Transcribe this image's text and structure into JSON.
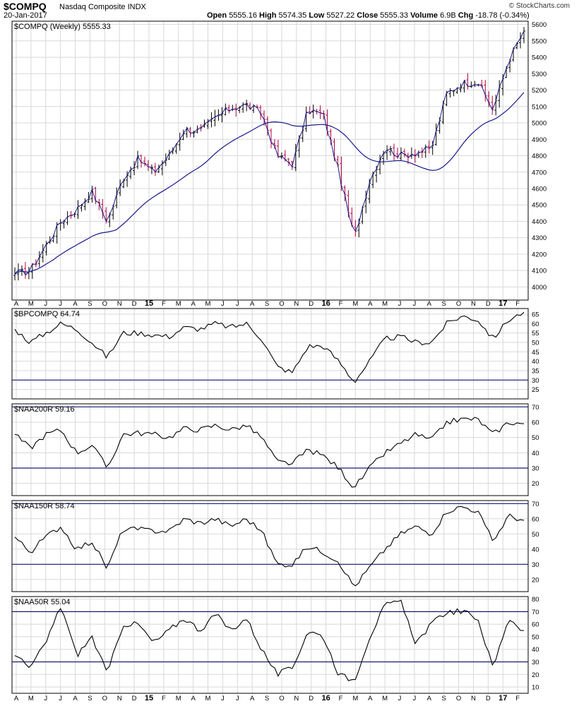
{
  "header": {
    "symbol": "$COMPQ",
    "name": "Nasdaq Composite INDX",
    "date": "20-Jan-2017",
    "open_label": "Open",
    "open": "5555.16",
    "high_label": "High",
    "high": "5574.35",
    "low_label": "Low",
    "low": "5527.22",
    "close_label": "Close",
    "close": "5555.33",
    "volume_label": "Volume",
    "volume": "6.9B",
    "chg_label": "Chg",
    "chg": "-18.78 (-0.34%)",
    "brand": "© StockCharts.com"
  },
  "colors": {
    "up_bar": "#000000",
    "down_bar": "#b0003a",
    "line": "#000000",
    "moving_average": "#1a1a8c",
    "reference_line": "#1a1a6e",
    "grid": "#d8d8d8",
    "border": "#000000"
  },
  "x_axis": {
    "labels": [
      "A",
      "M",
      "J",
      "J",
      "A",
      "S",
      "O",
      "N",
      "D",
      "15",
      "F",
      "M",
      "A",
      "M",
      "J",
      "J",
      "A",
      "S",
      "O",
      "N",
      "D",
      "16",
      "F",
      "M",
      "A",
      "M",
      "J",
      "J",
      "A",
      "S",
      "O",
      "N",
      "D",
      "17",
      "F"
    ]
  },
  "chart_data": [
    {
      "type": "ohlc",
      "panel_label": "$COMPQ (Weekly) 5555.33",
      "frequency": "weekly",
      "overlay": "moving average",
      "ylim": [
        3920,
        5620
      ],
      "y_ticks": [
        4000,
        4100,
        4200,
        4300,
        4400,
        4500,
        4600,
        4700,
        4800,
        4900,
        5000,
        5100,
        5200,
        5300,
        5400,
        5500,
        5600
      ],
      "close_anchors": [
        [
          "A",
          4080
        ],
        [
          "M",
          4100
        ],
        [
          "J",
          4250
        ],
        [
          "J",
          4400
        ],
        [
          "A",
          4470
        ],
        [
          "S",
          4580
        ],
        [
          "O",
          4400
        ],
        [
          "N",
          4660
        ],
        [
          "D",
          4780
        ],
        [
          "15",
          4700
        ],
        [
          "F",
          4800
        ],
        [
          "M",
          4960
        ],
        [
          "A",
          4950
        ],
        [
          "M",
          5030
        ],
        [
          "J",
          5090
        ],
        [
          "J",
          5110
        ],
        [
          "A",
          5060
        ],
        [
          "S",
          4800
        ],
        [
          "O",
          4750
        ],
        [
          "N",
          5080
        ],
        [
          "D",
          5050
        ],
        [
          "16",
          4700
        ],
        [
          "F",
          4300
        ],
        [
          "M",
          4650
        ],
        [
          "A",
          4850
        ],
        [
          "M",
          4800
        ],
        [
          "J",
          4820
        ],
        [
          "J",
          4840
        ],
        [
          "A",
          5180
        ],
        [
          "S",
          5240
        ],
        [
          "O",
          5250
        ],
        [
          "N",
          5080
        ],
        [
          "D",
          5380
        ],
        [
          "17",
          5560
        ]
      ],
      "last_close": 5555.33
    },
    {
      "type": "line",
      "panel_label": "$BPCOMPQ 64.74",
      "ylim": [
        20,
        68
      ],
      "y_ticks": [
        25,
        30,
        35,
        40,
        45,
        50,
        55,
        60,
        65
      ],
      "reference_lines": [
        30
      ],
      "anchors": [
        [
          "A",
          57
        ],
        [
          "M",
          50
        ],
        [
          "J",
          55
        ],
        [
          "J",
          60
        ],
        [
          "A",
          57
        ],
        [
          "S",
          50
        ],
        [
          "O",
          42
        ],
        [
          "N",
          55
        ],
        [
          "D",
          55
        ],
        [
          "15",
          54
        ],
        [
          "F",
          53
        ],
        [
          "M",
          58
        ],
        [
          "A",
          57
        ],
        [
          "M",
          60
        ],
        [
          "J",
          58
        ],
        [
          "J",
          60
        ],
        [
          "A",
          52
        ],
        [
          "S",
          37
        ],
        [
          "O",
          34
        ],
        [
          "N",
          48
        ],
        [
          "D",
          48
        ],
        [
          "16",
          40
        ],
        [
          "F",
          29
        ],
        [
          "M",
          40
        ],
        [
          "A",
          52
        ],
        [
          "M",
          53
        ],
        [
          "J",
          50
        ],
        [
          "J",
          50
        ],
        [
          "A",
          60
        ],
        [
          "S",
          64
        ],
        [
          "O",
          62
        ],
        [
          "N",
          52
        ],
        [
          "D",
          62
        ],
        [
          "17",
          66
        ]
      ],
      "last_value": 64.74
    },
    {
      "type": "line",
      "panel_label": "$NAA200R 59.16",
      "ylim": [
        12,
        72
      ],
      "y_ticks": [
        20,
        30,
        40,
        50,
        60,
        70
      ],
      "reference_lines": [
        30,
        70
      ],
      "anchors": [
        [
          "A",
          52
        ],
        [
          "M",
          43
        ],
        [
          "J",
          52
        ],
        [
          "J",
          55
        ],
        [
          "A",
          40
        ],
        [
          "S",
          45
        ],
        [
          "O",
          30
        ],
        [
          "N",
          52
        ],
        [
          "D",
          53
        ],
        [
          "15",
          52
        ],
        [
          "F",
          50
        ],
        [
          "M",
          56
        ],
        [
          "A",
          55
        ],
        [
          "M",
          58
        ],
        [
          "J",
          55
        ],
        [
          "J",
          58
        ],
        [
          "A",
          50
        ],
        [
          "S",
          34
        ],
        [
          "O",
          33
        ],
        [
          "N",
          42
        ],
        [
          "D",
          38
        ],
        [
          "16",
          30
        ],
        [
          "F",
          17
        ],
        [
          "M",
          30
        ],
        [
          "A",
          40
        ],
        [
          "M",
          46
        ],
        [
          "J",
          52
        ],
        [
          "J",
          48
        ],
        [
          "A",
          60
        ],
        [
          "S",
          62
        ],
        [
          "O",
          62
        ],
        [
          "N",
          52
        ],
        [
          "D",
          60
        ],
        [
          "17",
          59
        ]
      ],
      "last_value": 59.16
    },
    {
      "type": "line",
      "panel_label": "$NAA150R 58.74",
      "ylim": [
        12,
        72
      ],
      "y_ticks": [
        20,
        30,
        40,
        50,
        60,
        70
      ],
      "reference_lines": [
        30,
        70
      ],
      "anchors": [
        [
          "A",
          48
        ],
        [
          "M",
          38
        ],
        [
          "J",
          48
        ],
        [
          "J",
          55
        ],
        [
          "A",
          40
        ],
        [
          "S",
          45
        ],
        [
          "O",
          27
        ],
        [
          "N",
          53
        ],
        [
          "D",
          53
        ],
        [
          "15",
          52
        ],
        [
          "F",
          52
        ],
        [
          "M",
          60
        ],
        [
          "A",
          57
        ],
        [
          "M",
          60
        ],
        [
          "J",
          55
        ],
        [
          "J",
          60
        ],
        [
          "A",
          52
        ],
        [
          "S",
          30
        ],
        [
          "O",
          30
        ],
        [
          "N",
          42
        ],
        [
          "D",
          38
        ],
        [
          "16",
          32
        ],
        [
          "F",
          15
        ],
        [
          "M",
          28
        ],
        [
          "A",
          40
        ],
        [
          "M",
          50
        ],
        [
          "J",
          55
        ],
        [
          "J",
          50
        ],
        [
          "A",
          65
        ],
        [
          "S",
          68
        ],
        [
          "O",
          65
        ],
        [
          "N",
          45
        ],
        [
          "D",
          62
        ],
        [
          "17",
          59
        ]
      ],
      "last_value": 58.74
    },
    {
      "type": "line",
      "panel_label": "$NAA50R 55.04",
      "ylim": [
        5,
        82
      ],
      "y_ticks": [
        10,
        20,
        30,
        40,
        50,
        60,
        70,
        80
      ],
      "reference_lines": [
        30,
        70
      ],
      "anchors": [
        [
          "A",
          35
        ],
        [
          "M",
          25
        ],
        [
          "J",
          45
        ],
        [
          "J",
          75
        ],
        [
          "A",
          35
        ],
        [
          "S",
          50
        ],
        [
          "O",
          20
        ],
        [
          "N",
          60
        ],
        [
          "D",
          60
        ],
        [
          "15",
          45
        ],
        [
          "F",
          55
        ],
        [
          "M",
          65
        ],
        [
          "A",
          55
        ],
        [
          "M",
          68
        ],
        [
          "J",
          55
        ],
        [
          "J",
          65
        ],
        [
          "A",
          40
        ],
        [
          "S",
          20
        ],
        [
          "O",
          25
        ],
        [
          "N",
          55
        ],
        [
          "D",
          50
        ],
        [
          "16",
          20
        ],
        [
          "F",
          15
        ],
        [
          "M",
          50
        ],
        [
          "A",
          75
        ],
        [
          "M",
          78
        ],
        [
          "J",
          45
        ],
        [
          "J",
          60
        ],
        [
          "A",
          70
        ],
        [
          "S",
          70
        ],
        [
          "O",
          65
        ],
        [
          "N",
          25
        ],
        [
          "D",
          65
        ],
        [
          "17",
          55
        ]
      ],
      "last_value": 55.04
    }
  ]
}
